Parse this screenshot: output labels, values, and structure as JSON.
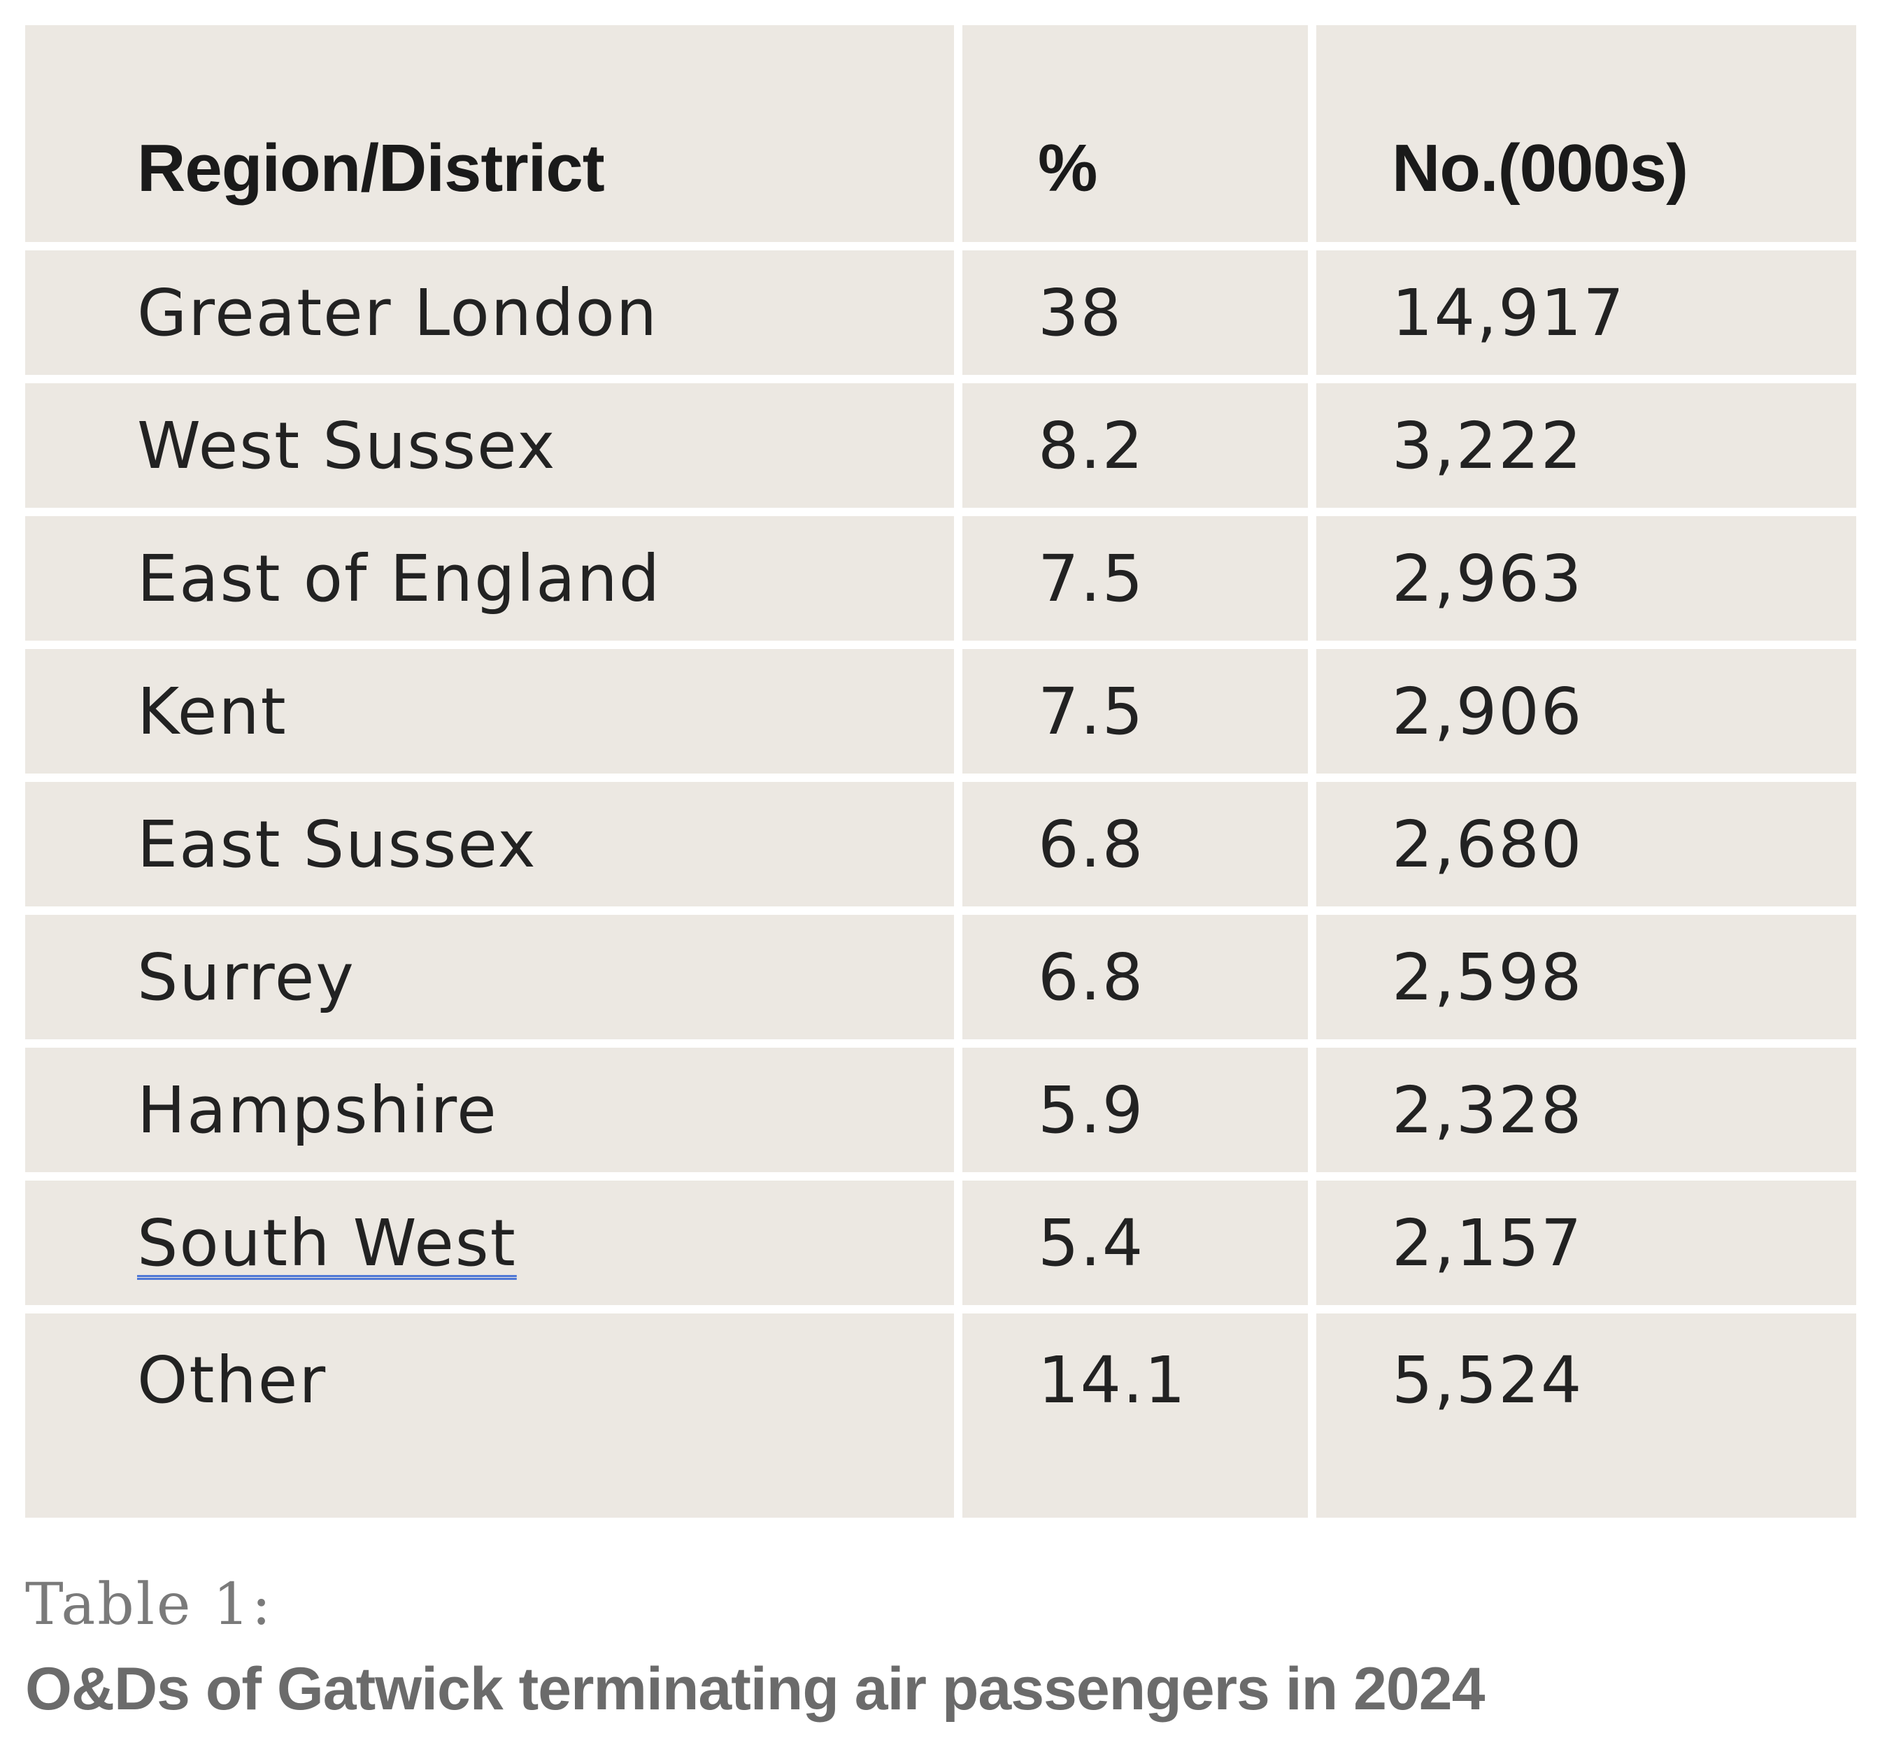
{
  "table": {
    "headers": [
      "Region/District",
      "%",
      "No.(000s)"
    ],
    "rows": [
      [
        "Greater London",
        "38",
        "14,917"
      ],
      [
        "West Sussex",
        "8.2",
        "3,222"
      ],
      [
        "East of England",
        "7.5",
        "2,963"
      ],
      [
        "Kent",
        "7.5",
        "2,906"
      ],
      [
        "East Sussex",
        "6.8",
        "2,680"
      ],
      [
        "Surrey",
        "6.8",
        "2,598"
      ],
      [
        "Hampshire",
        "5.9",
        "2,328"
      ],
      [
        "South West",
        "5.4",
        "2,157"
      ],
      [
        "Other",
        "14.1",
        "5,524"
      ]
    ]
  },
  "caption": {
    "label": "Table 1:",
    "title": "O&Ds of Gatwick terminating air passengers in 2024"
  },
  "colors": {
    "cell_background": "#ece8e2",
    "spellcheck_underline": "#4f78d6"
  }
}
